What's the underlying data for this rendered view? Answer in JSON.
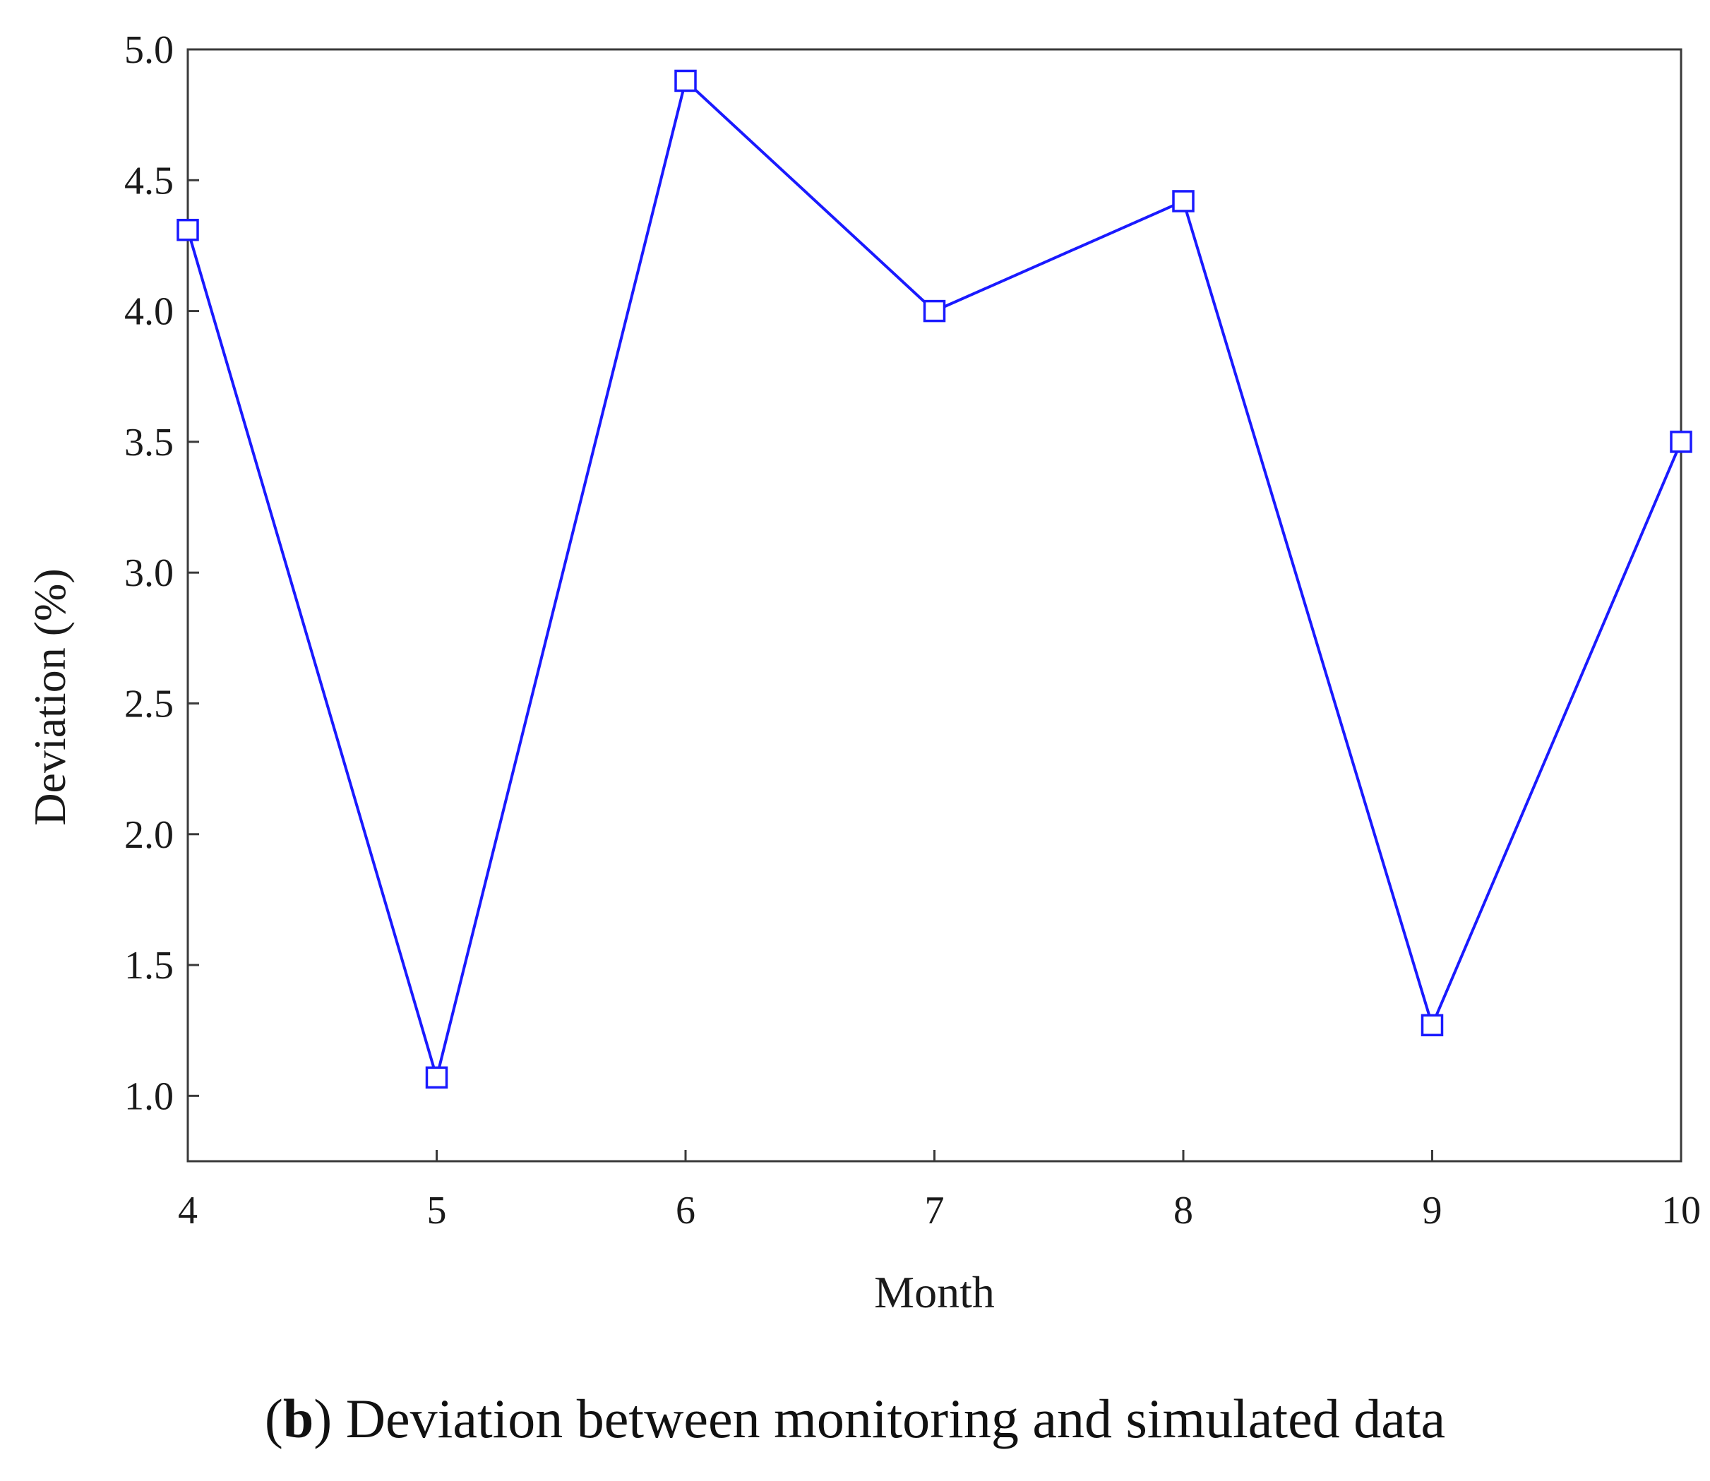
{
  "chart_data": {
    "type": "line",
    "title": "",
    "xlabel": "Month",
    "ylabel": "Deviation (%)",
    "x": [
      4,
      5,
      6,
      7,
      8,
      9,
      10
    ],
    "x_tick_labels": [
      "4",
      "5",
      "6",
      "7",
      "8",
      "9",
      "10"
    ],
    "xlim": [
      4,
      10
    ],
    "ylim": [
      0.75,
      5.0
    ],
    "y_ticks": [
      1.0,
      1.5,
      2.0,
      2.5,
      3.0,
      3.5,
      4.0,
      4.5,
      5.0
    ],
    "y_tick_labels": [
      "1.0",
      "1.5",
      "2.0",
      "2.5",
      "3.0",
      "3.5",
      "4.0",
      "4.5",
      "5.0"
    ],
    "grid": false,
    "series": [
      {
        "name": "Deviation",
        "color": "#1a1aff",
        "marker": "open-square",
        "values": [
          4.31,
          1.07,
          4.88,
          4.0,
          4.42,
          1.27,
          3.5
        ]
      }
    ]
  },
  "caption": {
    "panel_letter": "b",
    "open_paren": "(",
    "close_paren": ")",
    "text": " Deviation between monitoring and simulated data"
  }
}
